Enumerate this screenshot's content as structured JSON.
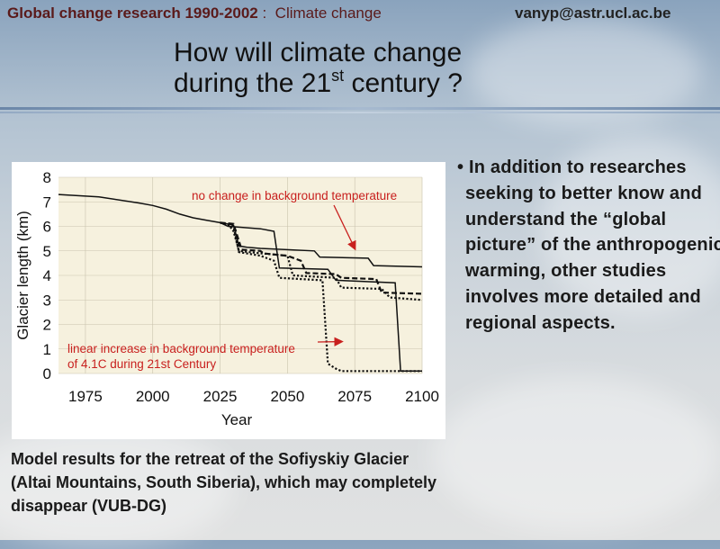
{
  "header": {
    "left_bold": "Global change research 1990-2002",
    "left_sep": " : ",
    "left_rest": " Climate change",
    "right": "vanyp@astr.ucl.ac.be"
  },
  "title": {
    "line1": "How will climate change",
    "line2_pre": "during the 21",
    "line2_sup": "st",
    "line2_post": " century ?"
  },
  "bullet_text": "• In addition to researches seeking to better know and understand the “global picture” of the anthropogenic warming, other studies involves more detailed and regional aspects.",
  "caption": "Model results for the retreat of the Sofiyskiy Glacier (Altai Mountains, South Siberia), which may completely disappear  (VUB-DG)",
  "colors": {
    "accent_red": "#c8201e",
    "header_red": "#5a1a1a"
  },
  "chart_data": {
    "type": "line",
    "xlabel": "Year",
    "ylabel": "Glacier length (km)",
    "xlim": [
      1965,
      2100
    ],
    "ylim": [
      0,
      8
    ],
    "x_ticks": [
      "1975",
      "2000",
      "2025",
      "2050",
      "2075",
      "2100"
    ],
    "y_ticks": [
      "0",
      "1",
      "2",
      "3",
      "4",
      "5",
      "6",
      "7",
      "8"
    ],
    "annotations": [
      {
        "lines": [
          "no change in background temperature"
        ],
        "color": "#c8201e",
        "arrow_to": [
          2075,
          5.1
        ]
      },
      {
        "lines": [
          "linear increase in background temperature",
          "of 4.1C during 21st Century"
        ],
        "color": "#c8201e",
        "arrow_to": [
          2070,
          1.3
        ]
      }
    ],
    "series": [
      {
        "style": "solid",
        "x": [
          1965,
          1980,
          1995,
          2000,
          2005,
          2010,
          2015,
          2020,
          2025,
          2030,
          2032,
          2035,
          2040,
          2060,
          2062,
          2080,
          2082,
          2100
        ],
        "y": [
          7.3,
          7.2,
          6.95,
          6.85,
          6.7,
          6.5,
          6.35,
          6.25,
          6.15,
          6.05,
          5.2,
          5.15,
          5.1,
          5.0,
          4.75,
          4.7,
          4.4,
          4.35
        ]
      },
      {
        "style": "solid",
        "x": [
          2025,
          2028,
          2040,
          2045,
          2047,
          2065,
          2068,
          2090,
          2092,
          2100
        ],
        "y": [
          6.15,
          6.0,
          5.9,
          5.8,
          4.3,
          4.25,
          3.8,
          3.7,
          0.1,
          0.1
        ]
      },
      {
        "style": "dotted",
        "x": [
          2025,
          2028,
          2030,
          2032,
          2040,
          2045,
          2050,
          2052,
          2068,
          2070,
          2085,
          2088,
          2100
        ],
        "y": [
          6.15,
          6.1,
          5.8,
          5.0,
          4.9,
          4.85,
          4.8,
          4.0,
          3.9,
          3.5,
          3.45,
          3.1,
          3.0
        ]
      },
      {
        "style": "dotted",
        "x": [
          2025,
          2030,
          2032,
          2040,
          2045,
          2047,
          2055,
          2063,
          2065,
          2068,
          2070,
          2100
        ],
        "y": [
          6.15,
          6.0,
          4.95,
          4.8,
          4.6,
          3.9,
          3.85,
          3.8,
          0.4,
          0.2,
          0.1,
          0.1
        ]
      },
      {
        "style": "dashed",
        "x": [
          2025,
          2030,
          2033,
          2040,
          2041,
          2050,
          2055,
          2057,
          2068,
          2070,
          2083,
          2085,
          2100
        ],
        "y": [
          6.15,
          6.1,
          5.05,
          5.0,
          4.9,
          4.8,
          4.6,
          4.1,
          4.05,
          3.9,
          3.85,
          3.3,
          3.25
        ]
      }
    ]
  }
}
